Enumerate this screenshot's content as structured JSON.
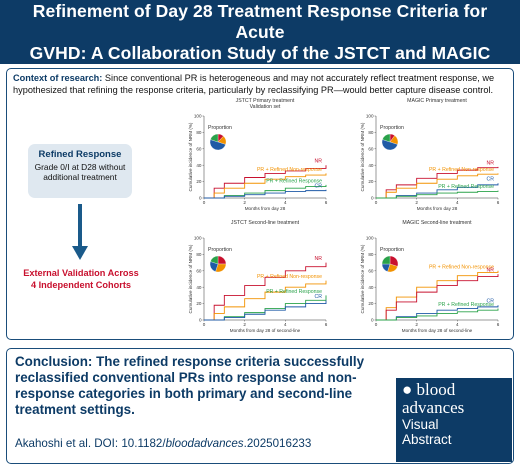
{
  "header": {
    "title": "Refinement of Day 28 Treatment Response Criteria for Acute\nGVHD: A Collaboration Study of the JSTCT and MAGIC"
  },
  "context": {
    "label": "Context of research:",
    "text": " Since conventional PR is heterogeneous and may not accurately reflect treatment response, we hypothesized that refining the response criteria, particularly by reclassifying PR—would better capture disease control."
  },
  "refined": {
    "title": "Refined Response",
    "desc": "Grade 0/I at D28 without additional treatment"
  },
  "external": {
    "text": "External Validation Across\n4 Independent Cohorts"
  },
  "colors": {
    "nr": "#c8102e",
    "prnr": "#f29200",
    "prr": "#2aa24a",
    "cr": "#1f5aa6",
    "navy": "#0d3b66"
  },
  "chart_data": [
    {
      "type": "line",
      "title": [
        "JSTCT Primary treatment",
        "Validation set"
      ],
      "xlabel": "Months from day 28",
      "ylabel": "Cumulative incidence of NRM (%)",
      "ylim": [
        0,
        100
      ],
      "xlim": [
        0,
        6
      ],
      "yticks": [
        "0",
        "20",
        "40",
        "60",
        "80",
        "100"
      ],
      "xticks": [
        "0",
        "2",
        "4",
        "6"
      ],
      "legend_title": "Proportion",
      "pie": [
        {
          "share": 0.12,
          "color": "#c8102e"
        },
        {
          "share": 0.18,
          "color": "#f29200"
        },
        {
          "share": 0.5,
          "color": "#1f5aa6"
        },
        {
          "share": 0.2,
          "color": "#2aa24a"
        }
      ],
      "series": [
        {
          "name": "NR",
          "color": "#c8102e",
          "x": [
            0,
            0.5,
            1,
            2,
            3,
            4,
            5,
            6
          ],
          "y": [
            0,
            12,
            18,
            25,
            30,
            33,
            36,
            40
          ]
        },
        {
          "name": "PR + Refined Non-response",
          "color": "#f29200",
          "x": [
            0,
            0.5,
            1,
            2,
            3,
            4,
            5,
            6
          ],
          "y": [
            0,
            6,
            12,
            18,
            23,
            26,
            28,
            30
          ]
        },
        {
          "name": "PR + Refined Response",
          "color": "#2aa24a",
          "x": [
            0,
            1,
            2,
            3,
            4,
            5,
            6
          ],
          "y": [
            0,
            3,
            6,
            9,
            12,
            14,
            16
          ]
        },
        {
          "name": "CR",
          "color": "#1f5aa6",
          "x": [
            0,
            1,
            2,
            3,
            4,
            5,
            6
          ],
          "y": [
            0,
            2,
            4,
            6,
            8,
            9,
            10
          ]
        }
      ]
    },
    {
      "type": "line",
      "title": [
        "MAGIC Primary treatment"
      ],
      "xlabel": "Months from day 28",
      "ylabel": "Cumulative incidence of NRM (%)",
      "ylim": [
        0,
        100
      ],
      "xlim": [
        0,
        6
      ],
      "yticks": [
        "0",
        "20",
        "40",
        "60",
        "80",
        "100"
      ],
      "xticks": [
        "0",
        "2",
        "4",
        "6"
      ],
      "legend_title": "Proportion",
      "pie": [
        {
          "share": 0.1,
          "color": "#c8102e"
        },
        {
          "share": 0.2,
          "color": "#f29200"
        },
        {
          "share": 0.5,
          "color": "#1f5aa6"
        },
        {
          "share": 0.2,
          "color": "#2aa24a"
        }
      ],
      "series": [
        {
          "name": "NR",
          "color": "#c8102e",
          "x": [
            0,
            0.5,
            1,
            2,
            3,
            4,
            5,
            6
          ],
          "y": [
            0,
            10,
            16,
            24,
            30,
            34,
            37,
            38
          ]
        },
        {
          "name": "PR + Refined Non-response",
          "color": "#f29200",
          "x": [
            0,
            0.5,
            1,
            2,
            3,
            4,
            5,
            6
          ],
          "y": [
            0,
            7,
            12,
            18,
            23,
            27,
            29,
            30
          ]
        },
        {
          "name": "CR",
          "color": "#1f5aa6",
          "x": [
            0,
            1,
            2,
            3,
            4,
            5,
            6
          ],
          "y": [
            0,
            3,
            6,
            10,
            13,
            16,
            18
          ]
        },
        {
          "name": "PR + Refined Response",
          "color": "#2aa24a",
          "x": [
            0,
            1,
            2,
            3,
            4,
            5,
            6
          ],
          "y": [
            0,
            2,
            4,
            6,
            7,
            8,
            9
          ]
        }
      ]
    },
    {
      "type": "line",
      "title": [
        "JSTCT Second-line treatment"
      ],
      "xlabel": "Months from day 28 of second-line",
      "ylabel": "Cumulative incidence of NRM (%)",
      "ylim": [
        0,
        100
      ],
      "xlim": [
        0,
        6
      ],
      "yticks": [
        "0",
        "20",
        "40",
        "60",
        "80",
        "100"
      ],
      "xticks": [
        "0",
        "2",
        "4",
        "6"
      ],
      "legend_title": "Proportion",
      "pie": [
        {
          "share": 0.25,
          "color": "#c8102e"
        },
        {
          "share": 0.3,
          "color": "#f29200"
        },
        {
          "share": 0.25,
          "color": "#1f5aa6"
        },
        {
          "share": 0.2,
          "color": "#2aa24a"
        }
      ],
      "series": [
        {
          "name": "NR",
          "color": "#c8102e",
          "x": [
            0,
            0.5,
            1,
            2,
            3,
            4,
            5,
            6
          ],
          "y": [
            0,
            18,
            30,
            42,
            52,
            60,
            65,
            70
          ]
        },
        {
          "name": "PR + Refined Non-response",
          "color": "#f29200",
          "x": [
            0,
            0.5,
            1,
            2,
            3,
            4,
            5,
            6
          ],
          "y": [
            0,
            8,
            16,
            26,
            34,
            40,
            44,
            48
          ]
        },
        {
          "name": "PR + Refined Response",
          "color": "#2aa24a",
          "x": [
            0,
            1,
            2,
            3,
            4,
            5,
            6
          ],
          "y": [
            0,
            4,
            9,
            14,
            20,
            24,
            30
          ]
        },
        {
          "name": "CR",
          "color": "#1f5aa6",
          "x": [
            0,
            1,
            2,
            3,
            4,
            5,
            6
          ],
          "y": [
            0,
            3,
            7,
            12,
            16,
            20,
            24
          ]
        }
      ]
    },
    {
      "type": "line",
      "title": [
        "MAGIC Second-line treatment"
      ],
      "xlabel": "Months from day 28 of second-line",
      "ylabel": "Cumulative incidence of NRM (%)",
      "ylim": [
        0,
        100
      ],
      "xlim": [
        0,
        6
      ],
      "yticks": [
        "0",
        "20",
        "40",
        "60",
        "80",
        "100"
      ],
      "xticks": [
        "0",
        "2",
        "4",
        "6"
      ],
      "legend_title": "Proportion",
      "pie": [
        {
          "share": 0.3,
          "color": "#c8102e"
        },
        {
          "share": 0.25,
          "color": "#f29200"
        },
        {
          "share": 0.2,
          "color": "#1f5aa6"
        },
        {
          "share": 0.25,
          "color": "#2aa24a"
        }
      ],
      "series": [
        {
          "name": "PR + Refined Non-response",
          "color": "#f29200",
          "x": [
            0,
            0.5,
            1,
            2,
            3,
            4,
            5,
            6
          ],
          "y": [
            0,
            15,
            28,
            40,
            48,
            54,
            58,
            60
          ]
        },
        {
          "name": "NR",
          "color": "#c8102e",
          "x": [
            0,
            0.5,
            1,
            2,
            3,
            4,
            5,
            6
          ],
          "y": [
            0,
            12,
            22,
            34,
            42,
            48,
            53,
            56
          ]
        },
        {
          "name": "CR",
          "color": "#1f5aa6",
          "x": [
            0,
            1,
            2,
            3,
            4,
            5,
            6
          ],
          "y": [
            0,
            4,
            8,
            12,
            14,
            16,
            18
          ]
        },
        {
          "name": "PR + Refined Response",
          "color": "#2aa24a",
          "x": [
            0,
            1,
            2,
            3,
            4,
            5,
            6
          ],
          "y": [
            0,
            3,
            5,
            8,
            10,
            12,
            14
          ]
        }
      ]
    }
  ],
  "conclusion": {
    "label": "Conclusion:",
    "text": " The refined response criteria successfully reclassified conventional PRs into response and non-response categories in both primary and second-line treatment settings."
  },
  "citation": {
    "prefix": "Akahoshi et al. DOI: 10.1182/",
    "italic": "bloodadvances",
    "suffix": ".2025016233"
  },
  "logo": {
    "line1": "blood",
    "line2": "advances",
    "line3": "Visual",
    "line4": "Abstract"
  }
}
